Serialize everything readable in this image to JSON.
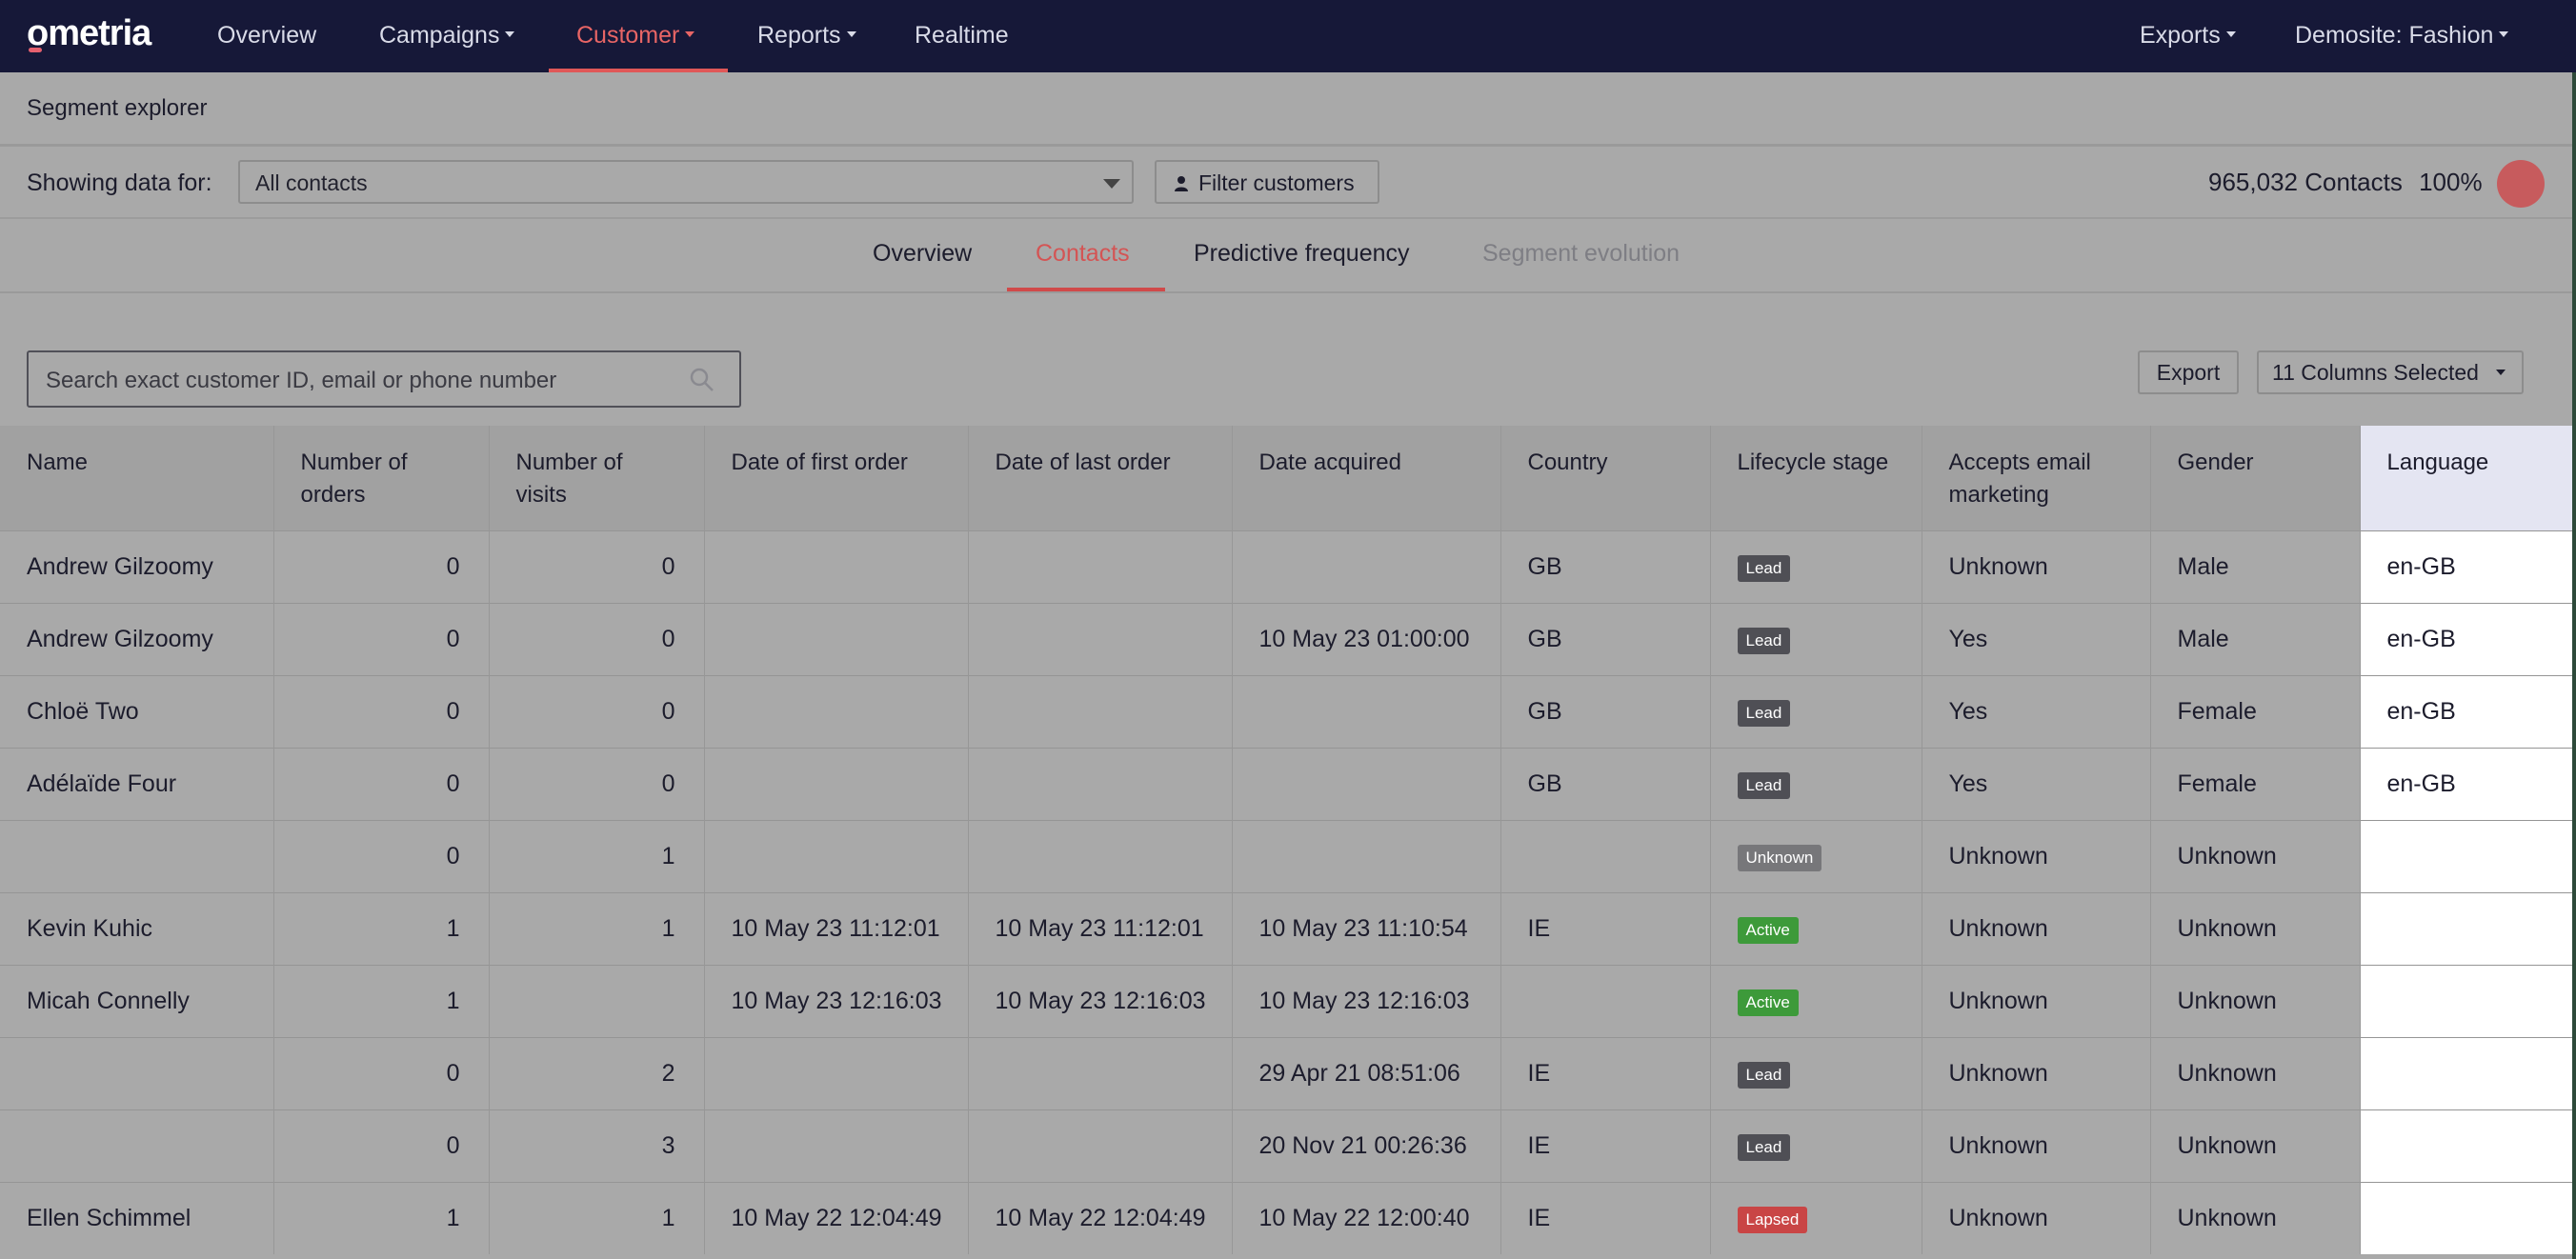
{
  "nav": {
    "logo": "ometria",
    "items": [
      {
        "label": "Overview",
        "caret": false
      },
      {
        "label": "Campaigns",
        "caret": true
      },
      {
        "label": "Customer",
        "caret": true
      },
      {
        "label": "Reports",
        "caret": true
      },
      {
        "label": "Realtime",
        "caret": false
      }
    ],
    "right": [
      {
        "label": "Exports"
      },
      {
        "label": "Demosite: Fashion"
      }
    ]
  },
  "page": {
    "title": "Segment explorer"
  },
  "filter": {
    "showing_label": "Showing data for:",
    "segment_value": "All contacts",
    "filter_button": "Filter customers",
    "contacts_count": "965,032",
    "contacts_label": "Contacts",
    "percent": "100%"
  },
  "tabs": [
    {
      "label": "Overview"
    },
    {
      "label": "Contacts"
    },
    {
      "label": "Predictive frequency"
    },
    {
      "label": "Segment evolution"
    }
  ],
  "toolbar": {
    "search_placeholder": "Search exact customer ID, email or phone number",
    "export_label": "Export",
    "columns_label": "11 Columns Selected"
  },
  "table": {
    "columns": [
      "Name",
      "Number of orders",
      "Number of visits",
      "Date of first order",
      "Date of last order",
      "Date acquired",
      "Country",
      "Lifecycle stage",
      "Accepts email marketing",
      "Gender",
      "Language"
    ],
    "rows": [
      {
        "name": "Andrew Gilzoomy",
        "orders": "0",
        "visits": "0",
        "first": "",
        "last": "",
        "acquired": "",
        "country": "GB",
        "stage": "Lead",
        "accepts": "Unknown",
        "gender": "Male",
        "language": "en-GB"
      },
      {
        "name": "Andrew Gilzoomy",
        "orders": "0",
        "visits": "0",
        "first": "",
        "last": "",
        "acquired": "10 May 23 01:00:00",
        "country": "GB",
        "stage": "Lead",
        "accepts": "Yes",
        "gender": "Male",
        "language": "en-GB"
      },
      {
        "name": "Chloë Two",
        "orders": "0",
        "visits": "0",
        "first": "",
        "last": "",
        "acquired": "",
        "country": "GB",
        "stage": "Lead",
        "accepts": "Yes",
        "gender": "Female",
        "language": "en-GB"
      },
      {
        "name": "Adélaïde Four",
        "orders": "0",
        "visits": "0",
        "first": "",
        "last": "",
        "acquired": "",
        "country": "GB",
        "stage": "Lead",
        "accepts": "Yes",
        "gender": "Female",
        "language": "en-GB"
      },
      {
        "name": "",
        "orders": "0",
        "visits": "1",
        "first": "",
        "last": "",
        "acquired": "",
        "country": "",
        "stage": "Unknown",
        "accepts": "Unknown",
        "gender": "Unknown",
        "language": ""
      },
      {
        "name": "Kevin Kuhic",
        "orders": "1",
        "visits": "1",
        "first": "10 May 23 11:12:01",
        "last": "10 May 23 11:12:01",
        "acquired": "10 May 23 11:10:54",
        "country": "IE",
        "stage": "Active",
        "accepts": "Unknown",
        "gender": "Unknown",
        "language": ""
      },
      {
        "name": "Micah Connelly",
        "orders": "1",
        "visits": "",
        "first": "10 May 23 12:16:03",
        "last": "10 May 23 12:16:03",
        "acquired": "10 May 23 12:16:03",
        "country": "",
        "stage": "Active",
        "accepts": "Unknown",
        "gender": "Unknown",
        "language": ""
      },
      {
        "name": "",
        "orders": "0",
        "visits": "2",
        "first": "",
        "last": "",
        "acquired": "29 Apr 21 08:51:06",
        "country": "IE",
        "stage": "Lead",
        "accepts": "Unknown",
        "gender": "Unknown",
        "language": ""
      },
      {
        "name": "",
        "orders": "0",
        "visits": "3",
        "first": "",
        "last": "",
        "acquired": "20 Nov 21 00:26:36",
        "country": "IE",
        "stage": "Lead",
        "accepts": "Unknown",
        "gender": "Unknown",
        "language": ""
      },
      {
        "name": "Ellen Schimmel",
        "orders": "1",
        "visits": "1",
        "first": "10 May 22 12:04:49",
        "last": "10 May 22 12:04:49",
        "acquired": "10 May 22 12:00:40",
        "country": "IE",
        "stage": "Lapsed",
        "accepts": "Unknown",
        "gender": "Unknown",
        "language": ""
      }
    ]
  }
}
